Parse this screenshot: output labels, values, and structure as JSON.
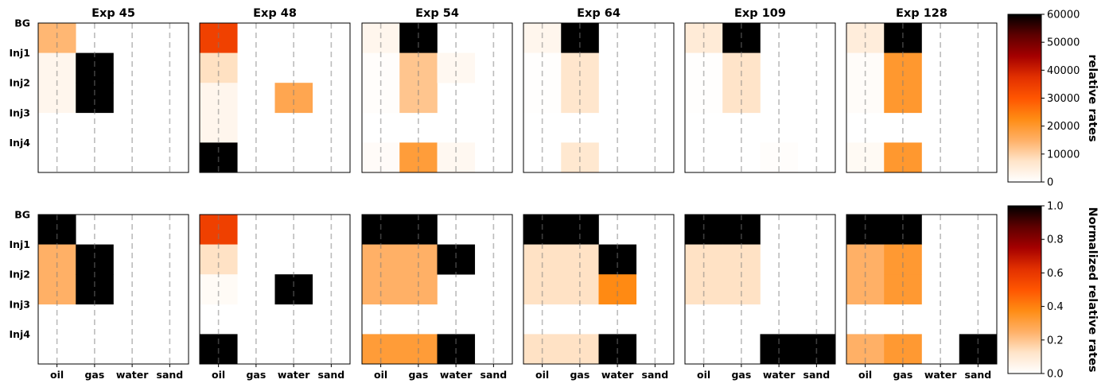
{
  "colormap": [
    "#ffffff",
    "#ffe4c9",
    "#ffb066",
    "#ff8c14",
    "#ff5500",
    "#e23000",
    "#a50000",
    "#5e0000",
    "#000000"
  ],
  "chart_data": {
    "type": "heatmap",
    "y_categories": [
      "BG",
      "Inj1",
      "Inj2",
      "Inj3",
      "Inj4"
    ],
    "x_categories": [
      "oil",
      "gas",
      "water",
      "sand"
    ],
    "panels_top": [
      {
        "title": "Exp 45",
        "cells": [
          [
            0,
            0,
            14000
          ],
          [
            1,
            0,
            2500
          ],
          [
            2,
            0,
            2500
          ],
          [
            1,
            1,
            60000
          ],
          [
            2,
            1,
            60000
          ]
        ]
      },
      {
        "title": "Exp 48",
        "cells": [
          [
            0,
            0,
            34000
          ],
          [
            1,
            0,
            8000
          ],
          [
            2,
            0,
            2500
          ],
          [
            3,
            0,
            2500
          ],
          [
            4,
            0,
            60000
          ],
          [
            2,
            2,
            17000
          ]
        ]
      },
      {
        "title": "Exp 54",
        "cells": [
          [
            0,
            0,
            2500
          ],
          [
            0,
            1,
            60000
          ],
          [
            1,
            0,
            500
          ],
          [
            2,
            0,
            500
          ],
          [
            4,
            0,
            1000
          ],
          [
            1,
            1,
            12000
          ],
          [
            2,
            1,
            12000
          ],
          [
            4,
            1,
            19000
          ],
          [
            1,
            2,
            2000
          ],
          [
            4,
            2,
            2000
          ]
        ]
      },
      {
        "title": "Exp 64",
        "cells": [
          [
            0,
            0,
            2500
          ],
          [
            0,
            1,
            60000
          ],
          [
            1,
            0,
            300
          ],
          [
            2,
            0,
            300
          ],
          [
            1,
            1,
            7000
          ],
          [
            2,
            1,
            7000
          ],
          [
            4,
            1,
            6500
          ]
        ]
      },
      {
        "title": "Exp 109",
        "cells": [
          [
            0,
            0,
            5500
          ],
          [
            0,
            1,
            60000
          ],
          [
            1,
            0,
            300
          ],
          [
            2,
            0,
            300
          ],
          [
            1,
            1,
            7500
          ],
          [
            2,
            1,
            7500
          ],
          [
            4,
            2,
            500
          ]
        ]
      },
      {
        "title": "Exp 128",
        "cells": [
          [
            0,
            0,
            5000
          ],
          [
            0,
            1,
            60000
          ],
          [
            1,
            0,
            800
          ],
          [
            2,
            0,
            800
          ],
          [
            4,
            0,
            1500
          ],
          [
            1,
            1,
            20000
          ],
          [
            2,
            1,
            20000
          ],
          [
            4,
            1,
            20000
          ]
        ]
      }
    ],
    "panels_bottom": [
      {
        "title": "",
        "cells": [
          [
            0,
            0,
            1.0
          ],
          [
            1,
            0,
            0.25
          ],
          [
            2,
            0,
            0.25
          ],
          [
            1,
            1,
            1.0
          ],
          [
            2,
            1,
            1.0
          ]
        ]
      },
      {
        "title": "",
        "cells": [
          [
            0,
            0,
            0.57
          ],
          [
            1,
            0,
            0.13
          ],
          [
            2,
            0,
            0.02
          ],
          [
            4,
            0,
            1.0
          ],
          [
            2,
            2,
            1.0
          ]
        ]
      },
      {
        "title": "",
        "cells": [
          [
            0,
            0,
            1.0
          ],
          [
            0,
            1,
            1.0
          ],
          [
            1,
            0,
            0.25
          ],
          [
            2,
            0,
            0.25
          ],
          [
            1,
            1,
            0.25
          ],
          [
            2,
            1,
            0.25
          ],
          [
            1,
            2,
            1.0
          ],
          [
            4,
            0,
            0.32
          ],
          [
            4,
            1,
            0.32
          ],
          [
            4,
            2,
            1.0
          ]
        ]
      },
      {
        "title": "",
        "cells": [
          [
            0,
            0,
            1.0
          ],
          [
            0,
            1,
            1.0
          ],
          [
            1,
            0,
            0.13
          ],
          [
            2,
            0,
            0.13
          ],
          [
            1,
            1,
            0.13
          ],
          [
            2,
            1,
            0.13
          ],
          [
            1,
            2,
            1.0
          ],
          [
            2,
            2,
            0.38
          ],
          [
            4,
            0,
            0.13
          ],
          [
            4,
            1,
            0.13
          ],
          [
            4,
            2,
            1.0
          ]
        ]
      },
      {
        "title": "",
        "cells": [
          [
            0,
            0,
            1.0
          ],
          [
            0,
            1,
            1.0
          ],
          [
            1,
            0,
            0.13
          ],
          [
            2,
            0,
            0.13
          ],
          [
            1,
            1,
            0.13
          ],
          [
            2,
            1,
            0.13
          ],
          [
            4,
            2,
            1.0
          ],
          [
            4,
            3,
            1.0
          ]
        ]
      },
      {
        "title": "",
        "cells": [
          [
            0,
            0,
            1.0
          ],
          [
            0,
            1,
            1.0
          ],
          [
            1,
            0,
            0.25
          ],
          [
            2,
            0,
            0.25
          ],
          [
            1,
            1,
            0.33
          ],
          [
            2,
            1,
            0.33
          ],
          [
            4,
            0,
            0.25
          ],
          [
            4,
            1,
            0.33
          ],
          [
            4,
            3,
            1.0
          ]
        ]
      }
    ],
    "colorbar_top": {
      "label": "relative rates",
      "range": [
        0,
        60000
      ],
      "ticks": [
        "0",
        "10000",
        "20000",
        "30000",
        "40000",
        "50000",
        "60000"
      ]
    },
    "colorbar_bottom": {
      "label": "Normalized relative rates",
      "range": [
        0,
        1
      ],
      "ticks": [
        "0.0",
        "0.2",
        "0.4",
        "0.6",
        "0.8",
        "1.0"
      ]
    }
  }
}
